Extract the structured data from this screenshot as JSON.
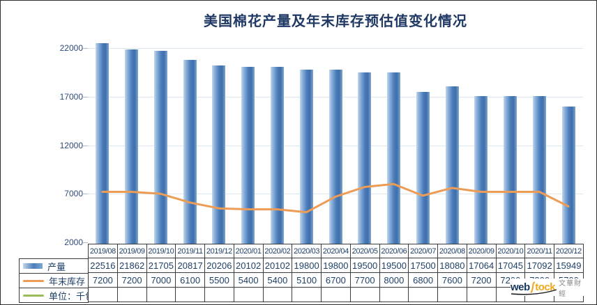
{
  "title": "美国棉花产量及年末库存预估值变化情况",
  "chart_data": {
    "type": "bar+line",
    "title": "美国棉花产量及年末库存预估值变化情况",
    "categories": [
      "2019/08",
      "2019/09",
      "2019/10",
      "2019/11",
      "2019/12",
      "2020/01",
      "2020/02",
      "2020/03",
      "2020/04",
      "2020/05",
      "2020/06",
      "2020/07",
      "2020/08",
      "2020/09",
      "2020/10",
      "2020/11",
      "2020/12"
    ],
    "series": [
      {
        "name": "产量",
        "type": "bar",
        "values": [
          22516,
          21862,
          21705,
          20817,
          20206,
          20102,
          20102,
          19800,
          19800,
          19500,
          19500,
          17500,
          18080,
          17064,
          17045,
          17092,
          15949
        ]
      },
      {
        "name": "年末库存",
        "type": "line",
        "values": [
          7200,
          7200,
          7000,
          6100,
          5500,
          5400,
          5400,
          5100,
          6700,
          7700,
          8000,
          6800,
          7600,
          7200,
          7200,
          7200,
          5700
        ]
      }
    ],
    "unit_row_label": "单位：千包",
    "ylim": [
      2000,
      22000
    ],
    "yticks": [
      2000,
      7000,
      12000,
      17000,
      22000
    ],
    "grid": true,
    "legend_position": "bottom-left-table"
  },
  "colors": {
    "title": "#1F3864",
    "bar_main": "#4B7DBB",
    "bar_light": "#C3D7EC",
    "line": "#ED9C56",
    "unit_line": "#9BBB59",
    "grid": "#DCE6F1",
    "table_text": "#1F4068",
    "table_border": "#3c3c3c"
  },
  "logo": {
    "web": "web",
    "tock": "tock",
    "cn": "文華財經"
  }
}
